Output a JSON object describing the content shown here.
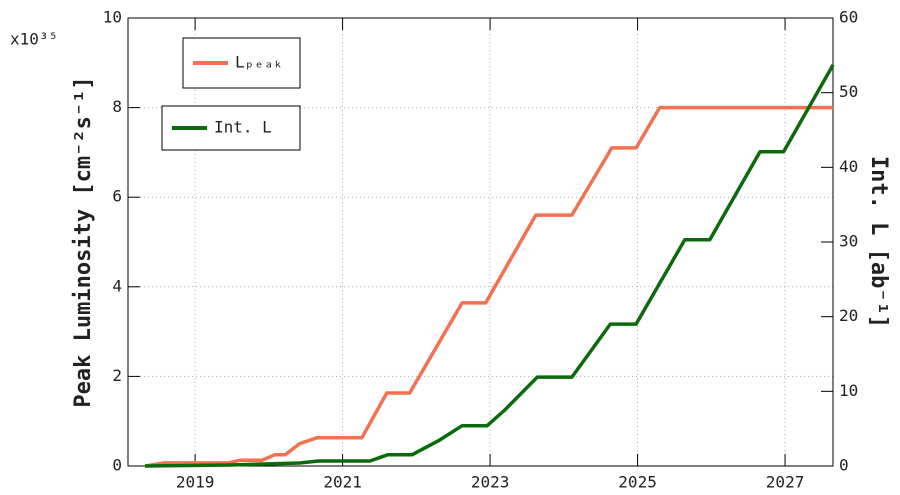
{
  "chart_data": {
    "type": "line",
    "y_label": "Peak Luminosity [cm⁻²s⁻¹]",
    "y_multiplier": "x10³⁵",
    "y2_label": "Int. L [ab⁻¹]",
    "xlim": [
      2018.09,
      2027.65
    ],
    "xticks": [
      2019,
      2021,
      2023,
      2025,
      2027
    ],
    "ylim": [
      0,
      10
    ],
    "yticks": [
      0,
      2,
      4,
      6,
      8,
      10
    ],
    "y2lim": [
      0,
      60
    ],
    "y2ticks": [
      0,
      10,
      20,
      30,
      40,
      50,
      60
    ],
    "grid": true,
    "series": [
      {
        "name": "Lₚₑₐₖ",
        "color": "#f4714f",
        "axis": "y",
        "x": [
          2018.32,
          2018.59,
          2019.45,
          2019.61,
          2019.91,
          2020.08,
          2020.22,
          2020.42,
          2020.65,
          2021.26,
          2021.6,
          2021.91,
          2022.62,
          2022.94,
          2023.62,
          2024.11,
          2024.65,
          2024.98,
          2025.3,
          2027.65
        ],
        "values": [
          0,
          0.07,
          0.07,
          0.13,
          0.13,
          0.25,
          0.25,
          0.5,
          0.63,
          0.63,
          1.63,
          1.63,
          3.64,
          3.64,
          5.6,
          5.6,
          7.1,
          7.1,
          8.0,
          8.0
        ]
      },
      {
        "name": "Int. L",
        "color": "#0b6b0b",
        "axis": "y2",
        "x": [
          2018.32,
          2019.47,
          2020.42,
          2020.67,
          2021.37,
          2021.61,
          2021.94,
          2022.32,
          2022.62,
          2022.96,
          2023.2,
          2023.64,
          2024.11,
          2024.63,
          2024.98,
          2025.64,
          2025.98,
          2026.66,
          2026.98,
          2027.65
        ],
        "values": [
          0,
          0.13,
          0.4,
          0.67,
          0.67,
          1.5,
          1.5,
          3.5,
          5.4,
          5.4,
          7.5,
          11.9,
          11.9,
          19.0,
          19.0,
          30.3,
          30.3,
          42.1,
          42.1,
          53.7
        ]
      }
    ]
  }
}
